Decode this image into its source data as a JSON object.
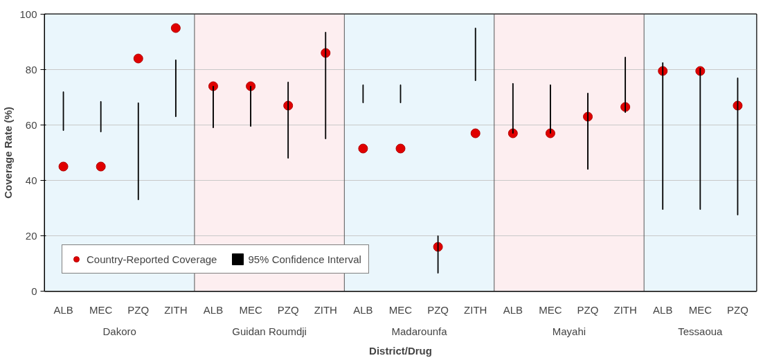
{
  "chart_data": {
    "type": "scatter",
    "xlabel": "District/Drug",
    "ylabel": "Coverage Rate (%)",
    "categories": [
      "ALB",
      "MEC",
      "PZQ",
      "ZITH",
      "ALB",
      "MEC",
      "PZQ",
      "ZITH",
      "ALB",
      "MEC",
      "PZQ",
      "ZITH",
      "ALB",
      "MEC",
      "PZQ",
      "ZITH",
      "ALB",
      "MEC",
      "PZQ"
    ],
    "annotations": [
      "Dakoro",
      "Guidan Roumdji",
      "Madarounfa",
      "Mayahi",
      "Tessaoua"
    ],
    "series": [
      {
        "name": "Country-Reported Coverage",
        "marker": "circle",
        "color": "#e00000",
        "values": [
          45,
          45,
          84,
          95,
          74,
          74,
          67,
          86,
          51.5,
          51.5,
          16,
          57,
          57,
          57,
          63,
          66.5,
          79.5,
          79.5,
          67
        ]
      },
      {
        "name": "95% Confidence Interval",
        "type": "bar",
        "color": "#000000",
        "base": [
          58,
          57.5,
          33,
          63,
          59,
          59.5,
          48,
          55,
          68,
          68,
          6.5,
          76,
          57,
          57,
          44,
          64.5,
          29.5,
          29.5,
          27.5
        ],
        "values": [
          14,
          11,
          35,
          20.5,
          15,
          14.5,
          27.5,
          38.5,
          6.5,
          6.5,
          13.5,
          19,
          18,
          17.5,
          27.5,
          20,
          53,
          51,
          49.5
        ]
      }
    ],
    "ylim": [
      0,
      100
    ],
    "yticks": [
      0,
      20,
      40,
      60,
      80,
      100
    ],
    "grid": "y",
    "legend": "bottom left"
  }
}
